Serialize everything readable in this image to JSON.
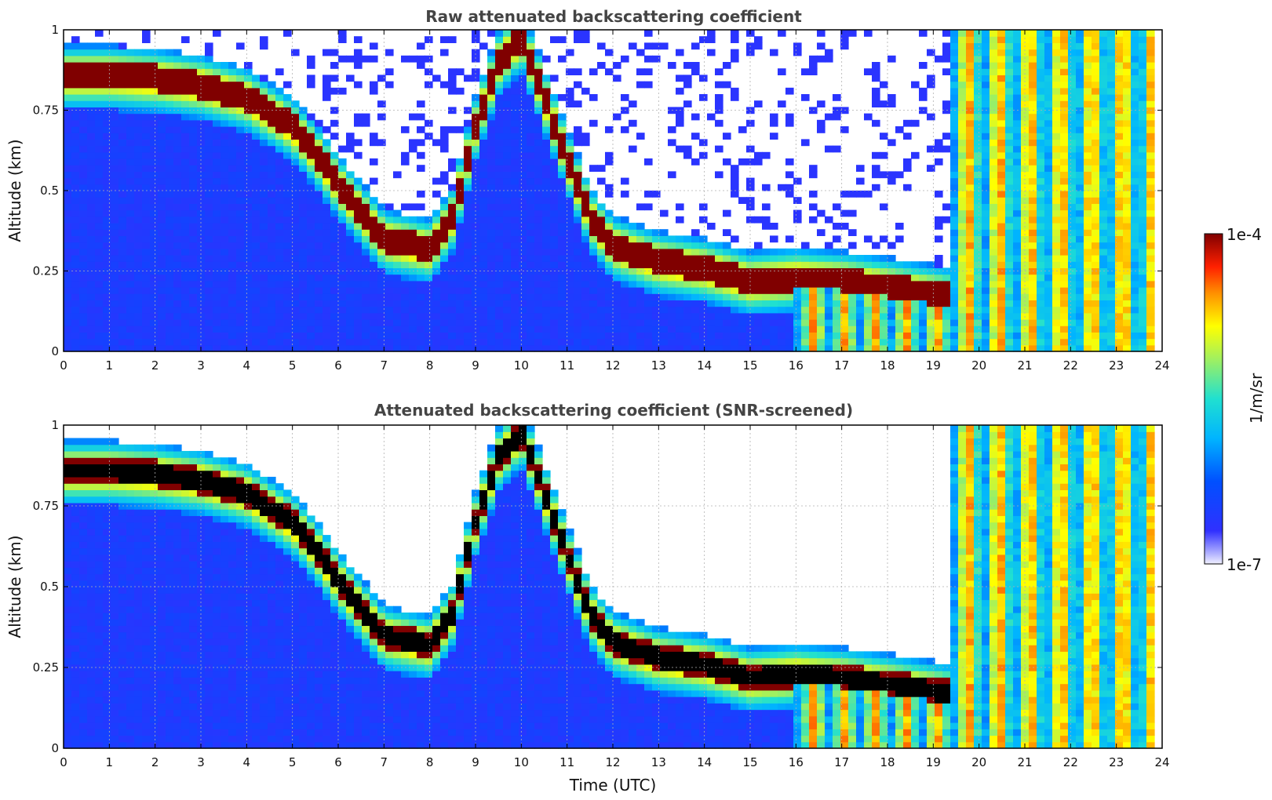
{
  "chart_data": [
    {
      "type": "heatmap",
      "title": "Raw attenuated backscattering coefficient",
      "xlabel": "",
      "ylabel": "Altitude (km)",
      "xlim": [
        0,
        24
      ],
      "ylim": [
        0,
        1
      ],
      "x_ticks": [
        "0",
        "1",
        "2",
        "3",
        "4",
        "5",
        "6",
        "7",
        "8",
        "9",
        "10",
        "11",
        "12",
        "13",
        "14",
        "15",
        "16",
        "17",
        "18",
        "19",
        "20",
        "21",
        "22",
        "23",
        "24"
      ],
      "y_ticks": [
        "0",
        "0.25",
        "0.5",
        "0.75",
        "1"
      ],
      "grid": true,
      "colorscale": "jet",
      "color_range": [
        "1e-7",
        "1e-4"
      ],
      "values_description": "Strong layer (~1e-4) descending from 0.85 km at 0 UTC to ~0.3 km at 7 UTC, rising to 1 km near 9-10 UTC, at ~0.3 km 11-14 UTC, ~0.2 km 14-19 UTC; precipitation streaks after 16 UTC.",
      "layer_altitude_km": {
        "x": [
          0,
          1,
          2,
          3,
          4,
          5,
          5.5,
          6,
          7,
          8,
          8.5,
          9,
          9.5,
          10,
          11,
          11.5,
          12,
          13,
          14,
          14.5,
          15,
          16,
          17,
          18,
          19.3
        ],
        "y": [
          0.86,
          0.86,
          0.85,
          0.83,
          0.79,
          0.7,
          0.62,
          0.52,
          0.35,
          0.32,
          0.42,
          0.7,
          0.9,
          0.98,
          0.6,
          0.42,
          0.33,
          0.28,
          0.26,
          0.24,
          0.22,
          0.23,
          0.22,
          0.2,
          0.17
        ]
      }
    },
    {
      "type": "heatmap",
      "title": "Attenuated backscattering coefficient (SNR-screened)",
      "xlabel": "Time (UTC)",
      "ylabel": "Altitude (km)",
      "xlim": [
        0,
        24
      ],
      "ylim": [
        0,
        1
      ],
      "x_ticks": [
        "0",
        "1",
        "2",
        "3",
        "4",
        "5",
        "6",
        "7",
        "8",
        "9",
        "10",
        "11",
        "12",
        "13",
        "14",
        "15",
        "16",
        "17",
        "18",
        "19",
        "20",
        "21",
        "22",
        "23",
        "24"
      ],
      "y_ticks": [
        "0",
        "0.25",
        "0.5",
        "0.75",
        "1"
      ],
      "grid": true,
      "colorscale": "jet",
      "color_range": [
        "1e-7",
        "1e-4"
      ],
      "saturated_color": "#000000",
      "values_description": "Same field with low-SNR pixels removed (white); saturated layer core shown in black."
    }
  ],
  "colorbar": {
    "label": "1/m/sr",
    "max_label": "1e-4",
    "min_label": "1e-7"
  }
}
